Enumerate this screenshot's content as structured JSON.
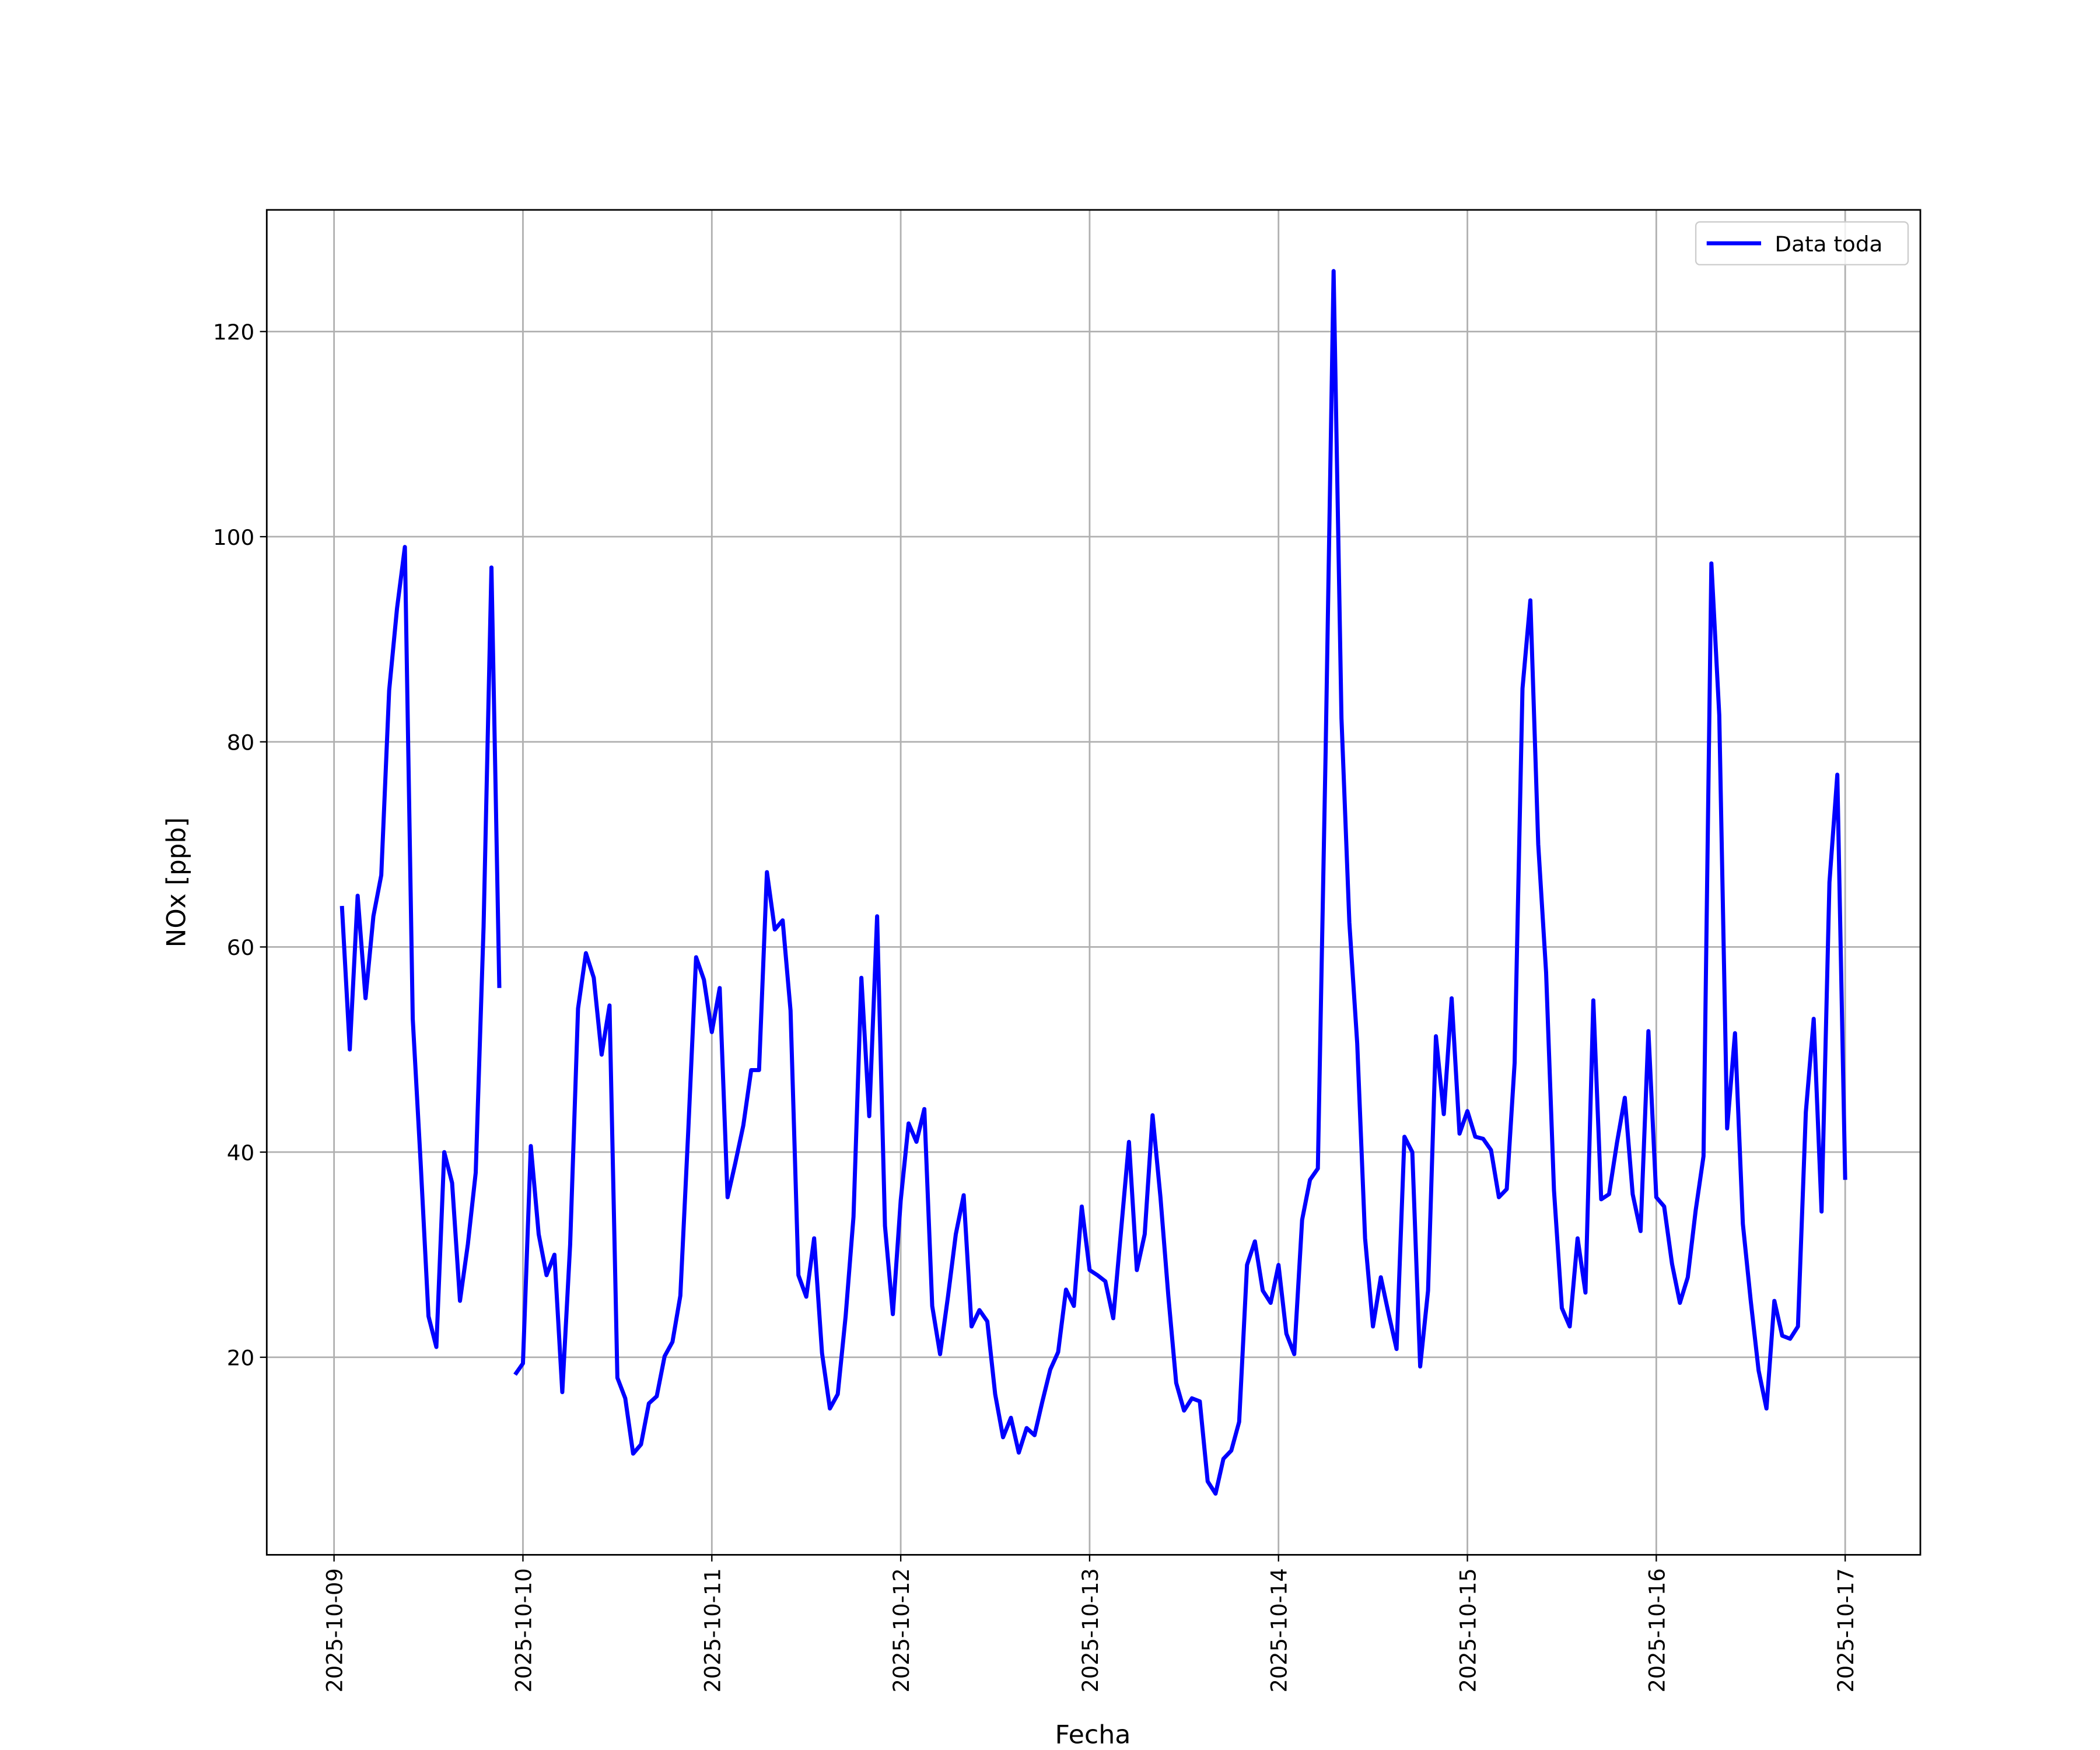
{
  "chart_data": {
    "type": "line",
    "x_label": "Fecha",
    "y_label": "NOx [ppb]",
    "x": [
      "2025-10-09 01:00",
      "2025-10-09 02:00",
      "2025-10-09 03:00",
      "2025-10-09 04:00",
      "2025-10-09 05:00",
      "2025-10-09 06:00",
      "2025-10-09 07:00",
      "2025-10-09 08:00",
      "2025-10-09 09:00",
      "2025-10-09 10:00",
      "2025-10-09 11:00",
      "2025-10-09 12:00",
      "2025-10-09 13:00",
      "2025-10-09 14:00",
      "2025-10-09 15:00",
      "2025-10-09 16:00",
      "2025-10-09 17:00",
      "2025-10-09 18:00",
      "2025-10-09 19:00",
      "2025-10-09 20:00",
      "2025-10-09 21:00",
      "2025-10-09 22:00",
      "2025-10-09 23:00",
      "2025-10-10 00:00",
      "2025-10-10 01:00",
      "2025-10-10 02:00",
      "2025-10-10 03:00",
      "2025-10-10 04:00",
      "2025-10-10 05:00",
      "2025-10-10 06:00",
      "2025-10-10 07:00",
      "2025-10-10 08:00",
      "2025-10-10 09:00",
      "2025-10-10 10:00",
      "2025-10-10 11:00",
      "2025-10-10 12:00",
      "2025-10-10 13:00",
      "2025-10-10 14:00",
      "2025-10-10 15:00",
      "2025-10-10 16:00",
      "2025-10-10 17:00",
      "2025-10-10 18:00",
      "2025-10-10 19:00",
      "2025-10-10 20:00",
      "2025-10-10 21:00",
      "2025-10-10 22:00",
      "2025-10-10 23:00",
      "2025-10-11 00:00",
      "2025-10-11 01:00",
      "2025-10-11 02:00",
      "2025-10-11 03:00",
      "2025-10-11 04:00",
      "2025-10-11 05:00",
      "2025-10-11 06:00",
      "2025-10-11 07:00",
      "2025-10-11 08:00",
      "2025-10-11 09:00",
      "2025-10-11 10:00",
      "2025-10-11 11:00",
      "2025-10-11 12:00",
      "2025-10-11 13:00",
      "2025-10-11 14:00",
      "2025-10-11 15:00",
      "2025-10-11 16:00",
      "2025-10-11 17:00",
      "2025-10-11 18:00",
      "2025-10-11 19:00",
      "2025-10-11 20:00",
      "2025-10-11 21:00",
      "2025-10-11 22:00",
      "2025-10-11 23:00",
      "2025-10-12 00:00",
      "2025-10-12 01:00",
      "2025-10-12 02:00",
      "2025-10-12 03:00",
      "2025-10-12 04:00",
      "2025-10-12 05:00",
      "2025-10-12 06:00",
      "2025-10-12 07:00",
      "2025-10-12 08:00",
      "2025-10-12 09:00",
      "2025-10-12 10:00",
      "2025-10-12 11:00",
      "2025-10-12 12:00",
      "2025-10-12 13:00",
      "2025-10-12 14:00",
      "2025-10-12 15:00",
      "2025-10-12 16:00",
      "2025-10-12 17:00",
      "2025-10-12 18:00",
      "2025-10-12 19:00",
      "2025-10-12 20:00",
      "2025-10-12 21:00",
      "2025-10-12 22:00",
      "2025-10-12 23:00",
      "2025-10-13 00:00",
      "2025-10-13 01:00",
      "2025-10-13 02:00",
      "2025-10-13 03:00",
      "2025-10-13 04:00",
      "2025-10-13 05:00",
      "2025-10-13 06:00",
      "2025-10-13 07:00",
      "2025-10-13 08:00",
      "2025-10-13 09:00",
      "2025-10-13 10:00",
      "2025-10-13 11:00",
      "2025-10-13 12:00",
      "2025-10-13 13:00",
      "2025-10-13 14:00",
      "2025-10-13 15:00",
      "2025-10-13 16:00",
      "2025-10-13 17:00",
      "2025-10-13 18:00",
      "2025-10-13 19:00",
      "2025-10-13 20:00",
      "2025-10-13 21:00",
      "2025-10-13 22:00",
      "2025-10-13 23:00",
      "2025-10-14 00:00",
      "2025-10-14 01:00",
      "2025-10-14 02:00",
      "2025-10-14 03:00",
      "2025-10-14 04:00",
      "2025-10-14 05:00",
      "2025-10-14 06:00",
      "2025-10-14 07:00",
      "2025-10-14 08:00",
      "2025-10-14 09:00",
      "2025-10-14 10:00",
      "2025-10-14 11:00",
      "2025-10-14 12:00",
      "2025-10-14 13:00",
      "2025-10-14 14:00",
      "2025-10-14 15:00",
      "2025-10-14 16:00",
      "2025-10-14 17:00",
      "2025-10-14 18:00",
      "2025-10-14 19:00",
      "2025-10-14 20:00",
      "2025-10-14 21:00",
      "2025-10-14 22:00",
      "2025-10-14 23:00",
      "2025-10-15 00:00",
      "2025-10-15 01:00",
      "2025-10-15 02:00",
      "2025-10-15 03:00",
      "2025-10-15 04:00",
      "2025-10-15 05:00",
      "2025-10-15 06:00",
      "2025-10-15 07:00",
      "2025-10-15 08:00",
      "2025-10-15 09:00",
      "2025-10-15 10:00",
      "2025-10-15 11:00",
      "2025-10-15 12:00",
      "2025-10-15 13:00",
      "2025-10-15 14:00",
      "2025-10-15 15:00",
      "2025-10-15 16:00",
      "2025-10-15 17:00",
      "2025-10-15 18:00",
      "2025-10-15 19:00",
      "2025-10-15 20:00",
      "2025-10-15 21:00",
      "2025-10-15 22:00",
      "2025-10-15 23:00",
      "2025-10-16 00:00",
      "2025-10-16 01:00",
      "2025-10-16 02:00",
      "2025-10-16 03:00",
      "2025-10-16 04:00",
      "2025-10-16 05:00",
      "2025-10-16 06:00",
      "2025-10-16 07:00",
      "2025-10-16 08:00",
      "2025-10-16 09:00",
      "2025-10-16 10:00",
      "2025-10-16 11:00",
      "2025-10-16 12:00",
      "2025-10-16 13:00",
      "2025-10-16 14:00",
      "2025-10-16 15:00",
      "2025-10-16 16:00",
      "2025-10-16 17:00",
      "2025-10-16 18:00",
      "2025-10-16 19:00",
      "2025-10-16 20:00",
      "2025-10-16 21:00",
      "2025-10-16 22:00",
      "2025-10-16 23:00",
      "2025-10-17 00:00"
    ],
    "series": [
      {
        "name": "Data toda",
        "color": "#0000ff",
        "values": [
          64,
          50,
          65,
          55,
          63,
          67,
          85,
          93,
          99,
          53,
          39,
          24,
          21,
          40,
          37,
          25.5,
          31,
          38,
          62,
          97,
          56,
          null,
          18.3,
          19.4,
          40.6,
          32,
          28,
          30,
          16.6,
          31,
          54,
          59.4,
          57,
          49.5,
          54.3,
          18,
          16,
          10.6,
          11.5,
          15.5,
          16.2,
          20.1,
          21.5,
          26,
          42,
          59,
          56.8,
          51.7,
          56,
          35.6,
          39,
          42.6,
          48,
          48,
          67.3,
          61.7,
          62.6,
          53.8,
          28,
          25.9,
          31.6,
          20.4,
          15,
          16.4,
          24,
          33.7,
          57,
          43.5,
          63,
          32.8,
          24.2,
          35.3,
          42.8,
          41,
          44.2,
          25,
          20.3,
          25.9,
          32,
          35.8,
          23,
          24.6,
          23.5,
          16.4,
          12.2,
          14.1,
          10.7,
          13.1,
          12.4,
          15.7,
          18.8,
          20.5,
          26.6,
          25,
          34.7,
          28.5,
          28,
          27.4,
          23.8,
          32.4,
          41,
          28.5,
          32,
          43.6,
          35.6,
          26,
          17.5,
          14.8,
          16,
          15.7,
          7.9,
          6.7,
          10.1,
          10.9,
          13.7,
          29,
          31.3,
          26.5,
          25.3,
          29,
          22.3,
          20.3,
          33.4,
          37.3,
          38.4,
          79.6,
          125.9,
          82.3,
          62.4,
          50.6,
          31.6,
          23,
          27.8,
          24.2,
          20.8,
          41.5,
          40,
          19.1,
          26.5,
          51.3,
          43.7,
          55,
          41.8,
          44,
          41.5,
          41.3,
          40.2,
          35.6,
          36.4,
          48.7,
          85.2,
          93.8,
          70,
          57.5,
          36.3,
          24.8,
          23,
          31.6,
          26.3,
          54.8,
          35.4,
          35.9,
          40.9,
          45.3,
          35.9,
          32.3,
          51.8,
          35.6,
          34.7,
          29.1,
          25.3,
          27.8,
          34.3,
          39.6,
          97.4,
          82.6,
          42.3,
          51.6,
          33,
          25.5,
          18.7,
          15,
          25.5,
          22.1,
          21.8,
          23,
          43.9,
          53,
          34.2,
          66.3,
          76.8,
          37.3
        ]
      }
    ],
    "xlim": [
      "2025-10-08 15:27",
      "2025-10-17 09:33"
    ],
    "xticks": [
      "2025-10-09",
      "2025-10-10",
      "2025-10-11",
      "2025-10-12",
      "2025-10-13",
      "2025-10-14",
      "2025-10-15",
      "2025-10-16",
      "2025-10-17"
    ],
    "ylim": [
      0.74,
      131.86
    ],
    "yticks": [
      20,
      40,
      60,
      80,
      100,
      120
    ],
    "grid": true,
    "legend": "upper right"
  }
}
